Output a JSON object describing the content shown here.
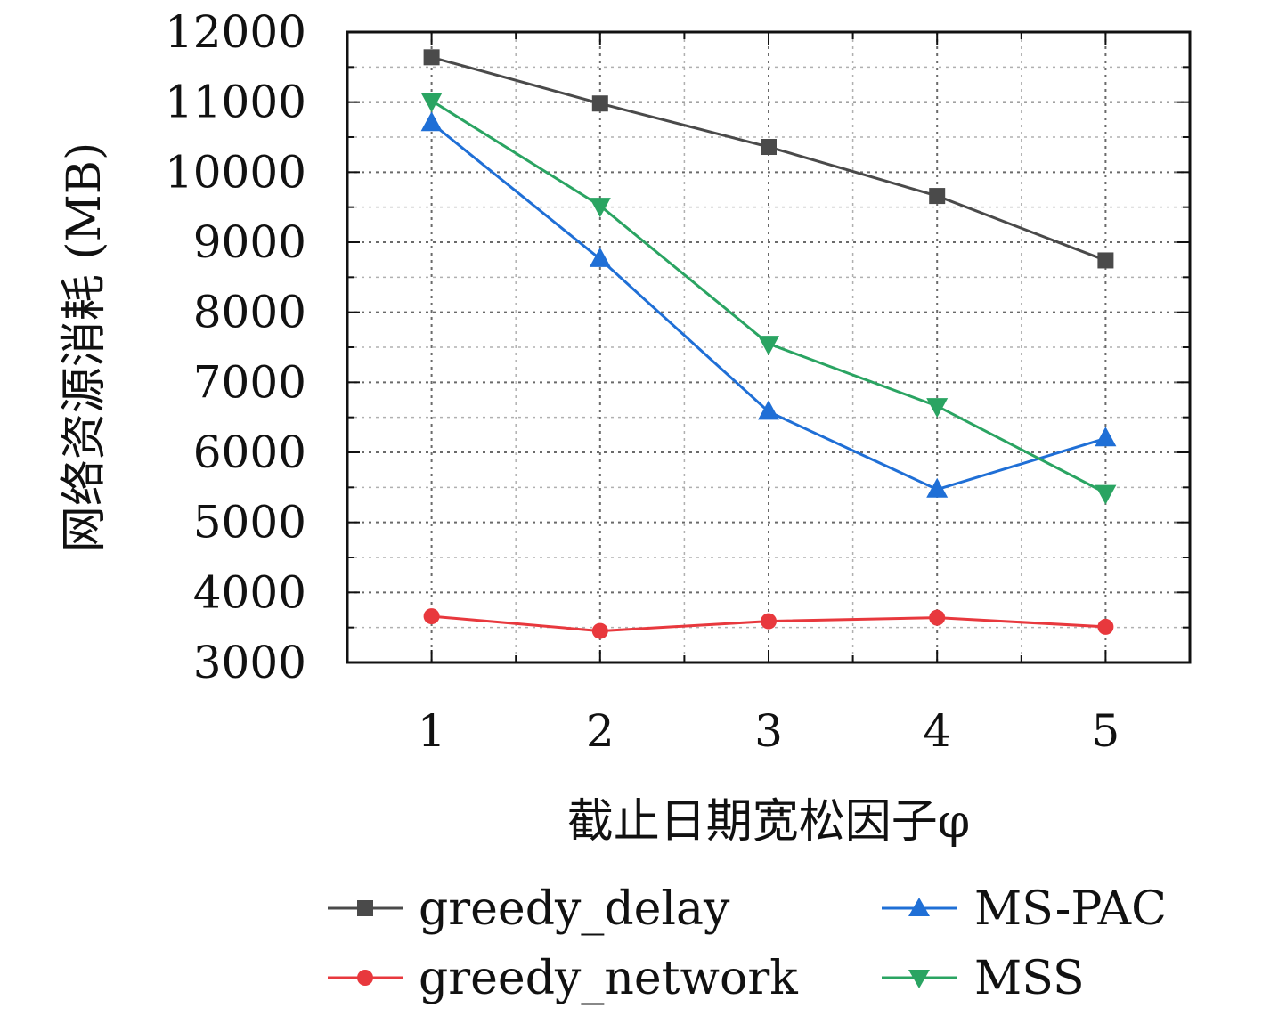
{
  "chart_data": {
    "type": "line",
    "title": "",
    "xlabel": "截止日期宽松因子φ",
    "ylabel": "网络资源消耗 (MB)",
    "x": [
      1,
      2,
      3,
      4,
      5
    ],
    "xlim": [
      0.5,
      5.5
    ],
    "ylim": [
      3000,
      12000
    ],
    "yticks": [
      3000,
      4000,
      5000,
      6000,
      7000,
      8000,
      9000,
      10000,
      11000,
      12000
    ],
    "xticks": [
      1,
      2,
      3,
      4,
      5
    ],
    "grid": true,
    "legend_position": "bottom",
    "series": [
      {
        "name": "greedy_delay",
        "color": "#4a4a4a",
        "marker": "square",
        "values": [
          11640,
          10980,
          10360,
          9660,
          8740
        ]
      },
      {
        "name": "greedy_network",
        "color": "#e8383d",
        "marker": "circle",
        "values": [
          3660,
          3450,
          3590,
          3640,
          3510
        ]
      },
      {
        "name": "MS-PAC",
        "color": "#1f6fd6",
        "marker": "triangle-up",
        "values": [
          10700,
          8760,
          6580,
          5470,
          6200
        ]
      },
      {
        "name": "MSS",
        "color": "#2aa462",
        "marker": "triangle-down",
        "values": [
          11020,
          9520,
          7550,
          6660,
          5420
        ]
      }
    ]
  }
}
